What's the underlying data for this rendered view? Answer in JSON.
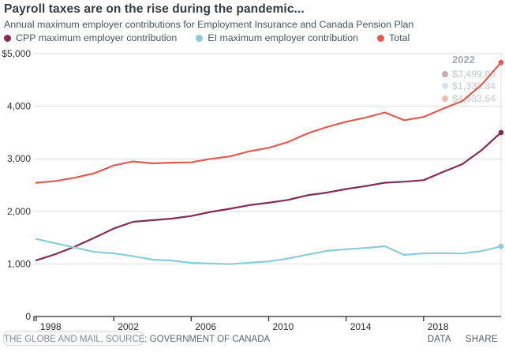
{
  "header": {
    "title": "Payroll taxes are on the rise during the pandemic...",
    "subtitle": "Annual maximum employer contributions for Employment Insurance and Canada Pension Plan"
  },
  "tooltip": {
    "year": "2022",
    "entries": [
      {
        "series": "CPP maximum employer contribution",
        "value": "$3,499.80",
        "color": "#832c56"
      },
      {
        "series": "EI maximum employer contribution",
        "value": "$1,333.84",
        "color": "#8cccda"
      },
      {
        "series": "Total",
        "value": "$4,833.64",
        "color": "#e05c50"
      }
    ]
  },
  "footer": {
    "credit": "THE GLOBE AND MAIL, SOURCE: GOVERNMENT OF CANADA",
    "links": [
      {
        "label": "DATA"
      },
      {
        "label": "SHARE"
      }
    ]
  },
  "colors": {
    "cpp": "#832c56",
    "ei": "#8cccda",
    "total": "#e05c50",
    "gridline": "#dedede",
    "axis": "#2e2e2e",
    "tick_text": "#333333"
  },
  "chart_data": {
    "type": "line",
    "title": "Payroll taxes are on the rise during the pandemic...",
    "subtitle": "Annual maximum employer contributions for Employment Insurance and Canada Pension Plan",
    "xlabel": "",
    "ylabel": "",
    "ylim": [
      0,
      5000
    ],
    "xlim": [
      1998,
      2022
    ],
    "grid": "horizontal",
    "legend_position": "top",
    "x": [
      1998,
      1999,
      2000,
      2001,
      2002,
      2003,
      2004,
      2005,
      2006,
      2007,
      2008,
      2009,
      2010,
      2011,
      2012,
      2013,
      2014,
      2015,
      2016,
      2017,
      2018,
      2019,
      2020,
      2021,
      2022
    ],
    "series": [
      {
        "name": "CPP maximum employer contribution",
        "slug": "cpp",
        "color": "#832c56",
        "end_label": "$3,499.80",
        "values": [
          1068.8,
          1186.5,
          1329.9,
          1496.4,
          1673.2,
          1801.8,
          1831.5,
          1861.2,
          1910.7,
          1989.9,
          2049.3,
          2118.6,
          2163.15,
          2217.6,
          2306.7,
          2356.2,
          2425.5,
          2479.95,
          2544.3,
          2564.1,
          2593.8,
          2748.9,
          2898.0,
          3166.45,
          3499.8
        ]
      },
      {
        "name": "EI maximum employer contribution",
        "slug": "ei",
        "color": "#8cccda",
        "end_label": "$1,333.84",
        "values": [
          1474.2,
          1392.3,
          1310.4,
          1228.5,
          1201.2,
          1146.6,
          1081.08,
          1064.7,
          1021.02,
          1008.0,
          995.44,
          1024.51,
          1046.3,
          1101.46,
          1175.96,
          1247.57,
          1279.15,
          1302.84,
          1337.06,
          1170.67,
          1201.51,
          1204.31,
          1198.9,
          1245.36,
          1333.84
        ]
      },
      {
        "name": "Total",
        "slug": "total",
        "color": "#e05c50",
        "end_label": "$4,833.64",
        "values": [
          2543.0,
          2578.8,
          2640.3,
          2724.9,
          2874.4,
          2948.4,
          2912.58,
          2925.9,
          2931.72,
          2997.9,
          3044.74,
          3143.11,
          3209.45,
          3319.06,
          3482.66,
          3603.77,
          3704.65,
          3782.79,
          3881.36,
          3734.77,
          3795.31,
          3953.21,
          4096.9,
          4411.81,
          4833.64
        ]
      }
    ],
    "y_ticks": [
      {
        "value": 5000,
        "label": "$5,000"
      },
      {
        "value": 4000,
        "label": "4,000"
      },
      {
        "value": 3000,
        "label": "3,000"
      },
      {
        "value": 2000,
        "label": "2,000"
      },
      {
        "value": 1000,
        "label": "1,000"
      },
      {
        "value": 0,
        "label": "0"
      }
    ],
    "x_ticks": [
      {
        "value": 1998,
        "label": "1998"
      },
      {
        "value": 2002,
        "label": "2002"
      },
      {
        "value": 2006,
        "label": "2006"
      },
      {
        "value": 2010,
        "label": "2010"
      },
      {
        "value": 2014,
        "label": "2014"
      },
      {
        "value": 2018,
        "label": "2018"
      }
    ]
  }
}
